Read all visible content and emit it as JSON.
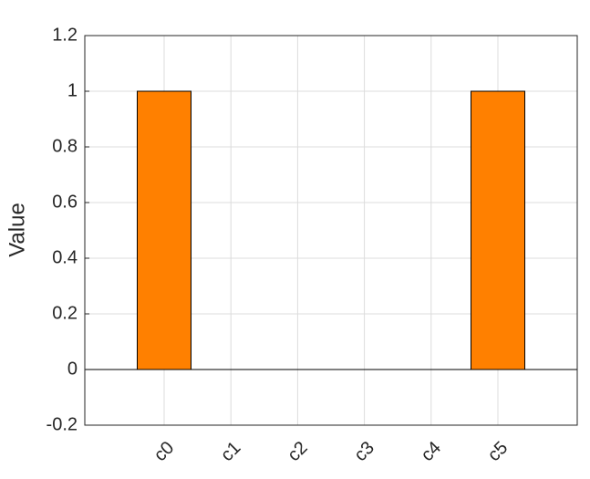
{
  "chart_data": {
    "type": "bar",
    "y_label": "Value",
    "categories": [
      "c0",
      "c1",
      "c2",
      "c3",
      "c4",
      "c5"
    ],
    "values": [
      1,
      0,
      0,
      0,
      0,
      1
    ],
    "color": "#ff8000",
    "ylim": [
      -0.2,
      1.2
    ],
    "yticks": [
      -0.2,
      0,
      0.2,
      0.4,
      0.6,
      0.8,
      1,
      1.2
    ],
    "grid": true
  }
}
